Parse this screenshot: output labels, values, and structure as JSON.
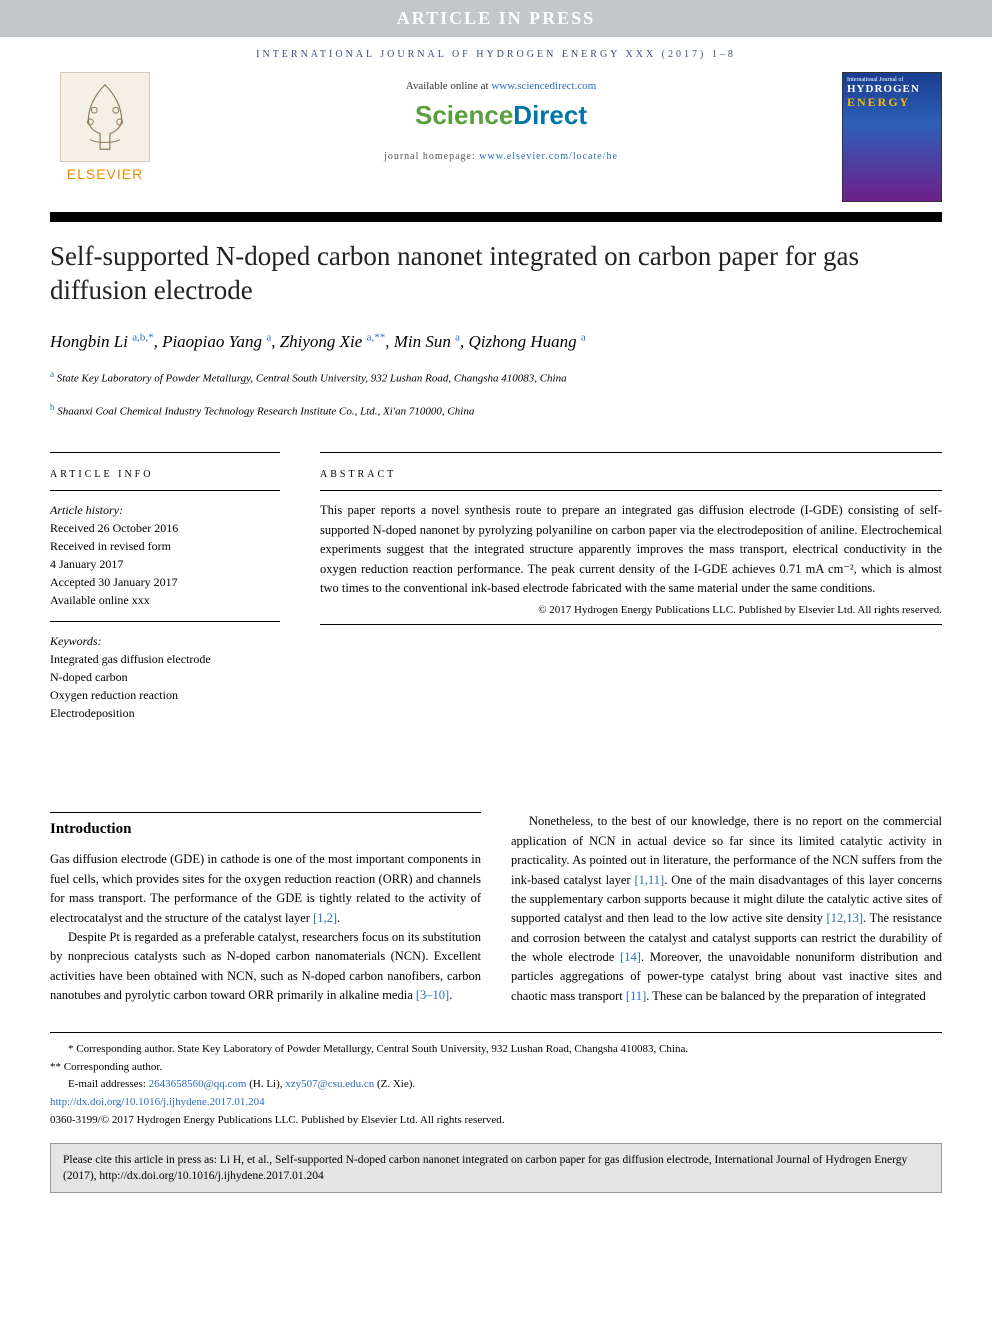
{
  "banner_text": "ARTICLE IN PRESS",
  "journal_line": "INTERNATIONAL JOURNAL OF HYDROGEN ENERGY XXX (2017) 1–8",
  "elsevier_label": "ELSEVIER",
  "avail_prefix": "Available online at ",
  "avail_url": "www.sciencedirect.com",
  "sd_logo_left": "Science",
  "sd_logo_right": "Direct",
  "homepage_prefix": "journal homepage: ",
  "homepage_url": "www.elsevier.com/locate/he",
  "cover": {
    "journal_line": "International Journal of",
    "hydrogen": "HYDROGEN",
    "energy": "ENERGY"
  },
  "title": "Self-supported N-doped carbon nanonet integrated on carbon paper for gas diffusion electrode",
  "authors_html": "Hongbin Li <sup>a,b,*</sup>, Piaopiao Yang <sup>a</sup>, Zhiyong Xie <sup>a,**</sup>, Min Sun <sup>a</sup>, Qizhong Huang <sup>a</sup>",
  "affiliations": [
    {
      "sup": "a",
      "text": "State Key Laboratory of Powder Metallurgy, Central South University, 932 Lushan Road, Changsha 410083, China"
    },
    {
      "sup": "b",
      "text": "Shaanxi Coal Chemical Industry Technology Research Institute Co., Ltd., Xi'an 710000, China"
    }
  ],
  "info_head": "ARTICLE INFO",
  "article_history_label": "Article history:",
  "history_lines": [
    "Received 26 October 2016",
    "Received in revised form",
    "4 January 2017",
    "Accepted 30 January 2017",
    "Available online xxx"
  ],
  "keywords_label": "Keywords:",
  "keywords": [
    "Integrated gas diffusion electrode",
    "N-doped carbon",
    "Oxygen reduction reaction",
    "Electrodeposition"
  ],
  "abstract_head": "ABSTRACT",
  "abstract_text": "This paper reports a novel synthesis route to prepare an integrated gas diffusion electrode (I-GDE) consisting of self-supported N-doped nanonet by pyrolyzing polyaniline on carbon paper via the electrodeposition of aniline. Electrochemical experiments suggest that the integrated structure apparently improves the mass transport, electrical conductivity in the oxygen reduction reaction performance. The peak current density of the I-GDE achieves 0.71 mA cm⁻², which is almost two times to the conventional ink-based electrode fabricated with the same material under the same conditions.",
  "abstract_copyright": "© 2017 Hydrogen Energy Publications LLC. Published by Elsevier Ltd. All rights reserved.",
  "intro_head": "Introduction",
  "intro_p1": "Gas diffusion electrode (GDE) in cathode is one of the most important components in fuel cells, which provides sites for the oxygen reduction reaction (ORR) and channels for mass transport. The performance of the GDE is tightly related to the activity of electrocatalyst and the structure of the catalyst layer ",
  "intro_p1_ref": "[1,2]",
  "intro_p1_end": ".",
  "intro_p2": "Despite Pt is regarded as a preferable catalyst, researchers focus on its substitution by nonprecious catalysts such as N-doped carbon nanomaterials (NCN). Excellent activities have been obtained with NCN, such as N-doped carbon nanofibers, carbon nanotubes and pyrolytic carbon toward ORR primarily in alkaline media ",
  "intro_p2_ref": "[3–10]",
  "intro_p2_end": ".",
  "col2_p1_a": "Nonetheless, to the best of our knowledge, there is no report on the commercial application of NCN in actual device so far since its limited catalytic activity in practicality. As pointed out in literature, the performance of the NCN suffers from the ink-based catalyst layer ",
  "col2_p1_r1": "[1,11]",
  "col2_p1_b": ". One of the main disadvantages of this layer concerns the supplementary carbon supports because it might dilute the catalytic active sites of supported catalyst and then lead to the low active site density ",
  "col2_p1_r2": "[12,13]",
  "col2_p1_c": ". The resistance and corrosion between the catalyst and catalyst supports can restrict the durability of the whole electrode ",
  "col2_p1_r3": "[14]",
  "col2_p1_d": ". Moreover, the unavoidable nonuniform distribution and particles aggregations of power-type catalyst bring about vast inactive sites and chaotic mass transport ",
  "col2_p1_r4": "[11]",
  "col2_p1_e": ". These can be balanced by the preparation of integrated",
  "fn_corr1": "* Corresponding author. State Key Laboratory of Powder Metallurgy, Central South University, 932 Lushan Road, Changsha 410083, China.",
  "fn_corr2": "** Corresponding author.",
  "fn_email_label": "E-mail addresses: ",
  "fn_email1": "2643658560@qq.com",
  "fn_email1_who": " (H. Li), ",
  "fn_email2": "xzy507@csu.edu.cn",
  "fn_email2_who": " (Z. Xie).",
  "fn_doi": "http://dx.doi.org/10.1016/j.ijhydene.2017.01.204",
  "fn_issn": "0360-3199/© 2017 Hydrogen Energy Publications LLC. Published by Elsevier Ltd. All rights reserved.",
  "cite_box": "Please cite this article in press as: Li H, et al., Self-supported N-doped carbon nanonet integrated on carbon paper for gas diffusion electrode, International Journal of Hydrogen Energy (2017), http://dx.doi.org/10.1016/j.ijhydene.2017.01.204",
  "colors": {
    "banner_bg": "#c3c7c9",
    "link": "#2a6ebb",
    "elsevier_orange": "#ed8b00",
    "sd_green": "#5a9f3c",
    "sd_blue": "#0076a8"
  }
}
